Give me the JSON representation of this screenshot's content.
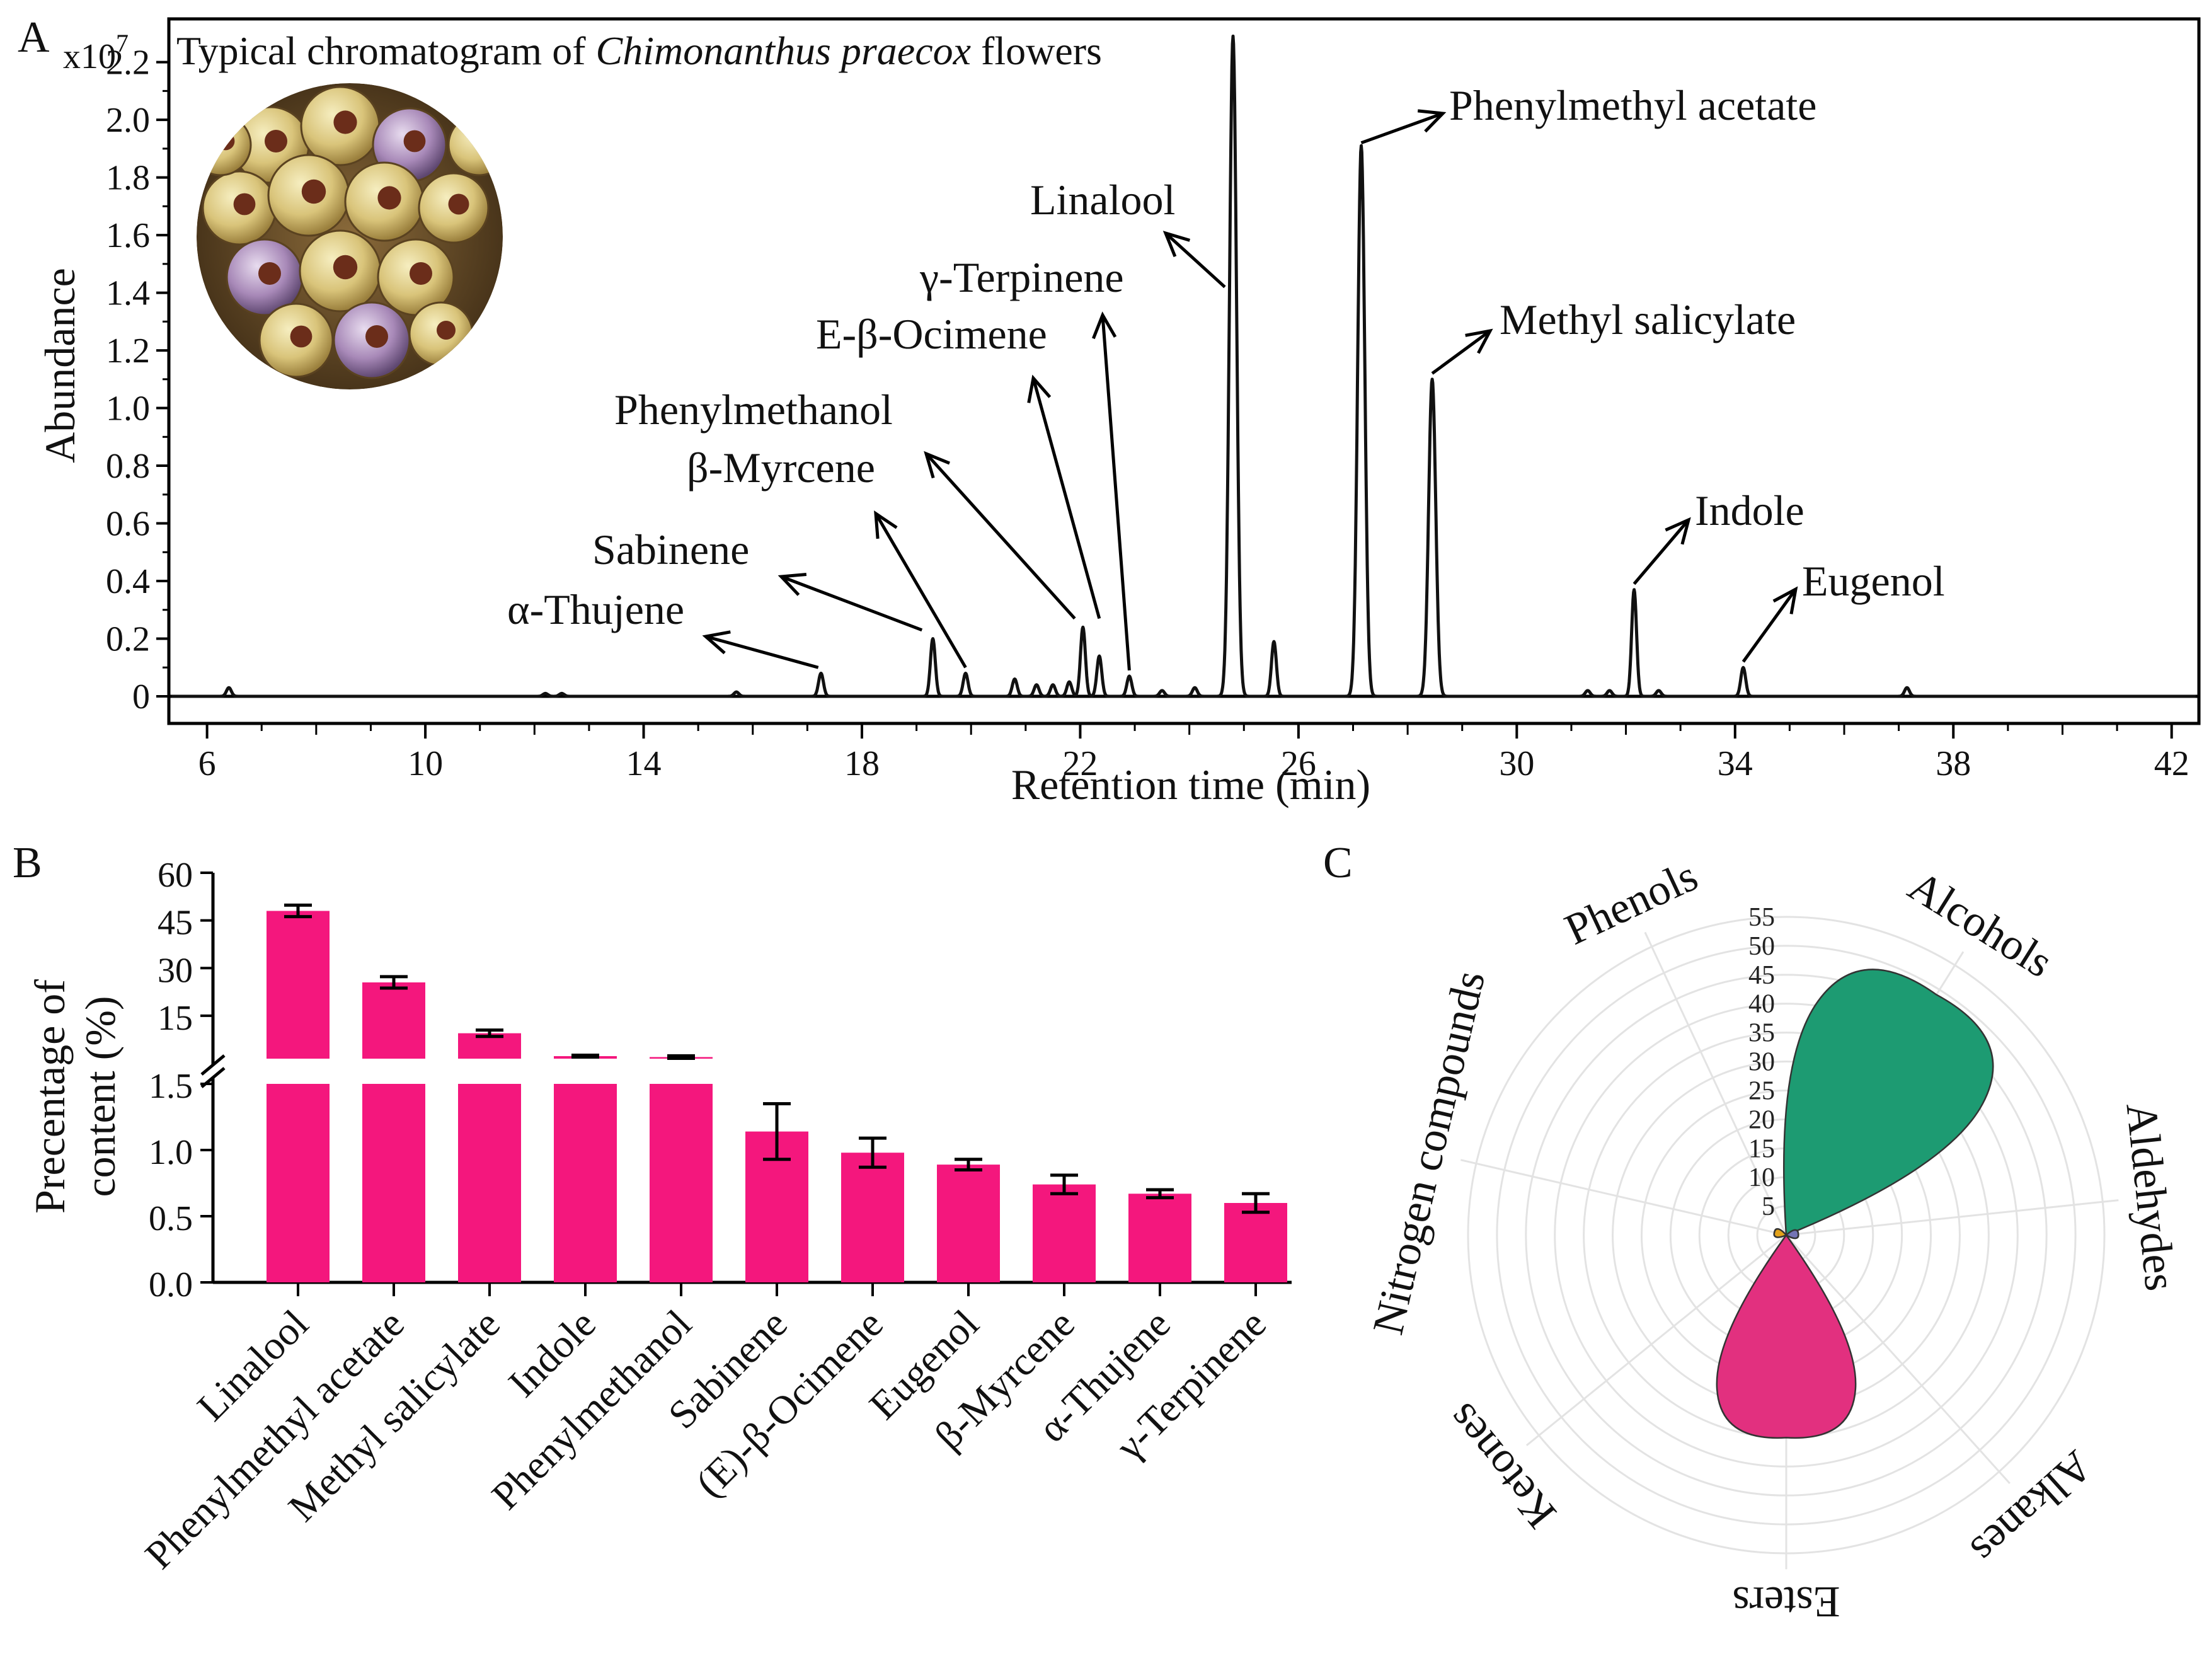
{
  "panels": {
    "A": {
      "letter": "A",
      "y_multiplier_base": "x10",
      "y_multiplier_exp": "7",
      "title_prefix": "Typical chromatogram of ",
      "title_species": "Chimonanthus praecox",
      "title_suffix": " flowers",
      "photo_icon": "flower-buds-photo"
    },
    "B": {
      "letter": "B"
    },
    "C": {
      "letter": "C"
    }
  },
  "chart_data": [
    {
      "type": "line",
      "panel": "A",
      "xlabel": "Retention time (min)",
      "ylabel": "Abundance",
      "xlim": [
        5.3,
        42.5
      ],
      "ylim": [
        0,
        2.35
      ],
      "x_ticks": [
        "6",
        "10",
        "14",
        "18",
        "22",
        "26",
        "30",
        "34",
        "38",
        "42"
      ],
      "y_ticks": [
        "0",
        "0.2",
        "0.4",
        "0.6",
        "0.8",
        "1.0",
        "1.2",
        "1.4",
        "1.6",
        "1.8",
        "2.0",
        "2.2"
      ],
      "x_tick_values": [
        6,
        10,
        14,
        18,
        22,
        26,
        30,
        34,
        38,
        42
      ],
      "y_tick_values": [
        0,
        0.2,
        0.4,
        0.6,
        0.8,
        1.0,
        1.2,
        1.4,
        1.6,
        1.8,
        2.0,
        2.2
      ],
      "peaks": [
        {
          "rt": 6.4,
          "height": 0.03
        },
        {
          "rt": 12.2,
          "height": 0.01
        },
        {
          "rt": 12.5,
          "height": 0.01
        },
        {
          "rt": 15.7,
          "height": 0.015
        },
        {
          "rt": 17.25,
          "height": 0.08
        },
        {
          "rt": 19.3,
          "height": 0.2
        },
        {
          "rt": 19.9,
          "height": 0.08
        },
        {
          "rt": 20.8,
          "height": 0.06
        },
        {
          "rt": 21.2,
          "height": 0.04
        },
        {
          "rt": 21.5,
          "height": 0.04
        },
        {
          "rt": 21.8,
          "height": 0.05
        },
        {
          "rt": 22.05,
          "height": 0.24
        },
        {
          "rt": 22.35,
          "height": 0.14
        },
        {
          "rt": 22.9,
          "height": 0.07
        },
        {
          "rt": 23.5,
          "height": 0.02
        },
        {
          "rt": 24.1,
          "height": 0.03
        },
        {
          "rt": 24.8,
          "height": 2.29
        },
        {
          "rt": 25.55,
          "height": 0.19
        },
        {
          "rt": 27.15,
          "height": 1.91
        },
        {
          "rt": 28.45,
          "height": 1.1
        },
        {
          "rt": 31.3,
          "height": 0.02
        },
        {
          "rt": 31.7,
          "height": 0.02
        },
        {
          "rt": 32.15,
          "height": 0.37
        },
        {
          "rt": 32.6,
          "height": 0.02
        },
        {
          "rt": 34.15,
          "height": 0.1
        },
        {
          "rt": 37.15,
          "height": 0.03
        }
      ],
      "annotations": [
        {
          "label": "α-Thujene",
          "peak_rt": 17.25
        },
        {
          "label": "Sabinene",
          "peak_rt": 19.3
        },
        {
          "label": "β-Myrcene",
          "peak_rt": 19.9
        },
        {
          "label": "Phenylmethanol",
          "peak_rt": 22.05
        },
        {
          "label": "E-β-Ocimene",
          "peak_rt": 22.2
        },
        {
          "label": "γ-Terpinene",
          "peak_rt": 22.9
        },
        {
          "label": "Linalool",
          "peak_rt": 24.8
        },
        {
          "label": "Phenylmethyl acetate",
          "peak_rt": 27.15
        },
        {
          "label": "Methyl salicylate",
          "peak_rt": 28.45
        },
        {
          "label": "Indole",
          "peak_rt": 32.15
        },
        {
          "label": "Eugenol",
          "peak_rt": 34.15
        }
      ]
    },
    {
      "type": "bar",
      "panel": "B",
      "ylabel_line1": "Precentage of",
      "ylabel_line2": "content (%)",
      "color": "#f4177d",
      "broken_axis": true,
      "lower_ylim": [
        0,
        1.5
      ],
      "upper_ylim": [
        1.5,
        60
      ],
      "lower_ticks": [
        "0.0",
        "0.5",
        "1.0",
        "1.5"
      ],
      "lower_tick_values": [
        0,
        0.5,
        1.0,
        1.5
      ],
      "upper_ticks": [
        "15",
        "30",
        "45",
        "60"
      ],
      "upper_tick_values": [
        15,
        30,
        45,
        60
      ],
      "categories": [
        "Linalool",
        "Phenylmethyl acetate",
        "Methyl salicylate",
        "Indole",
        "Phenylmethanol",
        "Sabinene",
        "(E)-β-Ocimene",
        "Eugenol",
        "β-Myrcene",
        "α-Thujene",
        "γ-Terpinene"
      ],
      "values": [
        48.0,
        25.5,
        9.5,
        2.3,
        2.0,
        1.14,
        0.98,
        0.89,
        0.74,
        0.67,
        0.6
      ],
      "errors": [
        1.8,
        1.8,
        1.0,
        0.3,
        0.4,
        0.21,
        0.11,
        0.04,
        0.07,
        0.03,
        0.07
      ]
    },
    {
      "type": "radar",
      "panel": "C",
      "axes": [
        "Alcohols",
        "Aldehydes",
        "Alkanes",
        "Esters",
        "Ketones",
        "Nitrogen compounds",
        "Phenols"
      ],
      "r_ticks": [
        "5",
        "10",
        "15",
        "20",
        "25",
        "30",
        "35",
        "40",
        "45",
        "50",
        "55"
      ],
      "r_tick_values": [
        5,
        10,
        15,
        20,
        25,
        30,
        35,
        40,
        45,
        50,
        55
      ],
      "rmax": 55,
      "series": [
        {
          "category": "Alcohols",
          "value": 49.0,
          "color": "#1d9b72"
        },
        {
          "category": "Aldehydes",
          "value": 1.0,
          "color": "#7474b5"
        },
        {
          "category": "Esters",
          "value": 35.0,
          "color": "#e2307f"
        },
        {
          "category": "Nitrogen compounds",
          "value": 0.5,
          "color": "#e3a21a"
        }
      ]
    }
  ]
}
